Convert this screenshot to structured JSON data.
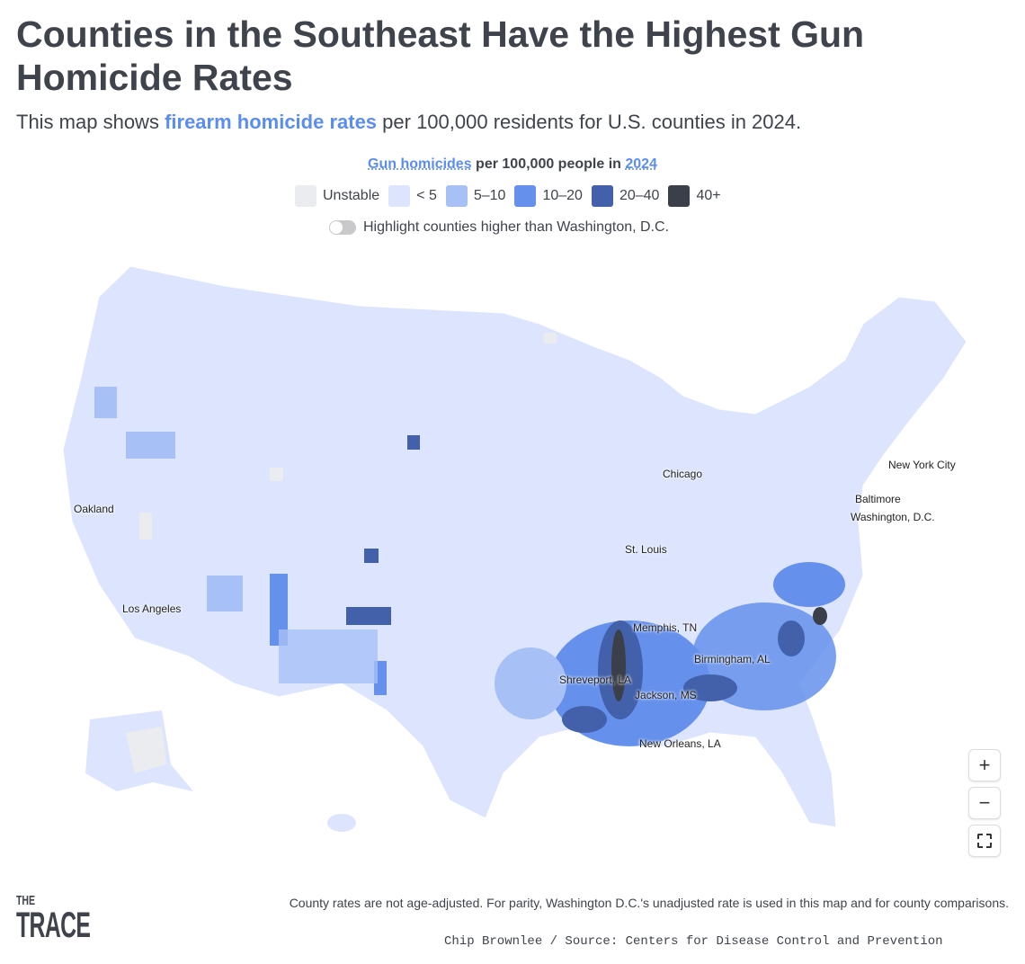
{
  "header": {
    "title": "Counties in the Southeast Have the Highest Gun Homicide Rates",
    "subtitle_pre": "This map shows ",
    "subtitle_link": "firearm homicide rates",
    "subtitle_post": " per 100,000 residents for U.S. counties in 2024."
  },
  "legend": {
    "title_link": "Gun homicides",
    "title_mid": " per 100,000 people in ",
    "title_year": "2024",
    "items": [
      {
        "label": "Unstable",
        "color": "#ebecef"
      },
      {
        "label": "< 5",
        "color": "#dce5fd"
      },
      {
        "label": "5–10",
        "color": "#a7c0f6"
      },
      {
        "label": "10–20",
        "color": "#6590ec"
      },
      {
        "label": "20–40",
        "color": "#4361aa"
      },
      {
        "label": "40+",
        "color": "#3b3f4a"
      }
    ]
  },
  "toggle": {
    "label": "Highlight counties higher than Washington, D.C.",
    "on": false
  },
  "cities": [
    "New York City",
    "Chicago",
    "Baltimore",
    "Washington, D.C.",
    "Oakland",
    "St. Louis",
    "Los Angeles",
    "Memphis, TN",
    "Birmingham, AL",
    "Shreveport, LA",
    "Jackson, MS",
    "New Orleans, LA"
  ],
  "zoom": {
    "in": "+",
    "out": "−"
  },
  "footer": {
    "note": "County rates are not age-adjusted. For parity, Washington D.C.'s unadjusted rate is used in this map and for county comparisons.",
    "credit": "Chip Brownlee / Source: Centers for Disease Control and Prevention",
    "logo_top": "THE",
    "logo_bottom": "TRACE"
  }
}
